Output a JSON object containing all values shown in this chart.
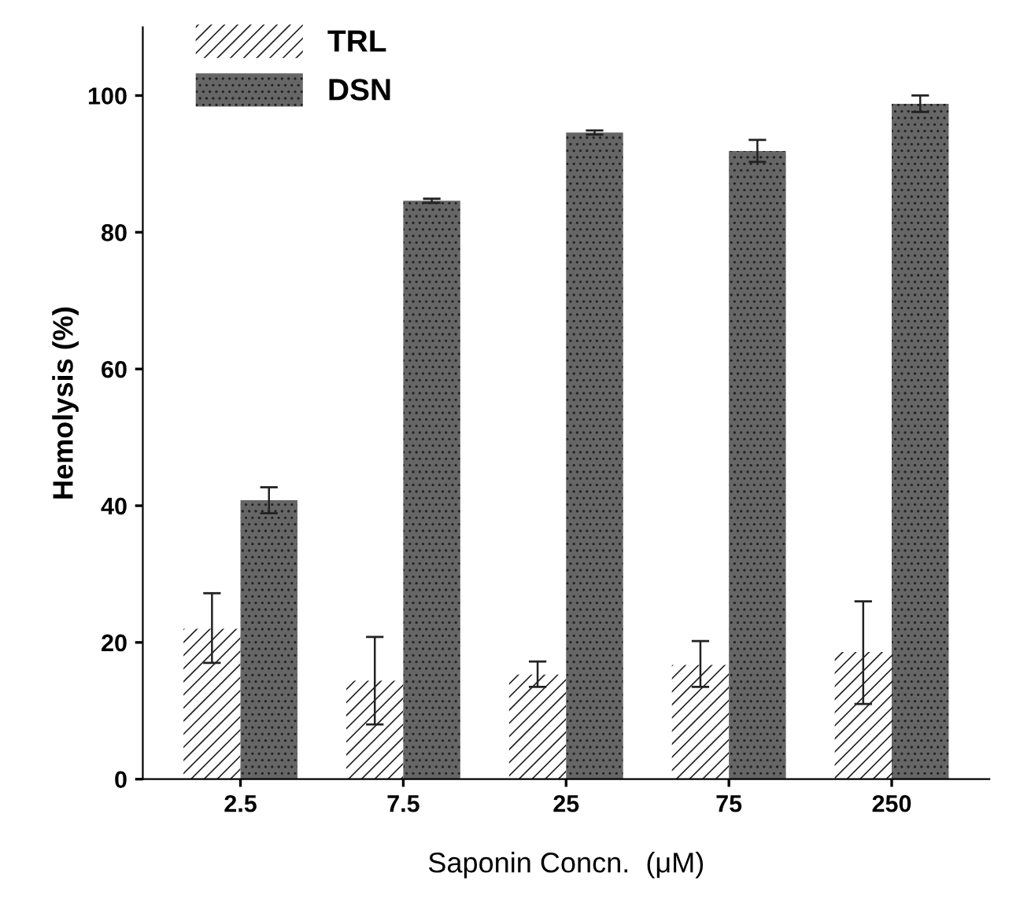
{
  "chart_data": {
    "type": "bar",
    "xlabel": "Saponin Concn.  (μM)",
    "ylabel": "Hemolysis (%)",
    "categories": [
      "2.5",
      "7.5",
      "25",
      "75",
      "250"
    ],
    "series": [
      {
        "name": "TRL",
        "color": "#ffffff",
        "values": [
          22,
          14.4,
          15.3,
          16.7,
          18.6
        ],
        "errors": [
          [
            17,
            27.2
          ],
          [
            8,
            20.8
          ],
          [
            13.5,
            17.2
          ],
          [
            13.5,
            20.2
          ],
          [
            11,
            26
          ]
        ]
      },
      {
        "name": "DSN",
        "color": "#666666",
        "values": [
          40.8,
          84.6,
          94.6,
          91.9,
          98.8
        ],
        "errors": [
          1.9,
          0.3,
          0.3,
          1.6,
          1.2
        ]
      }
    ],
    "ylim": [
      0,
      110
    ],
    "yticks": [
      0,
      20,
      40,
      60,
      80,
      100
    ],
    "grid": false,
    "legend": "top left"
  }
}
